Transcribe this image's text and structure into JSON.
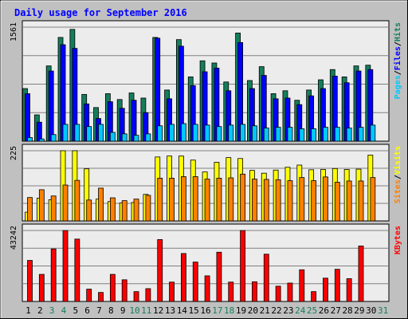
{
  "chart_data": {
    "type": "bar",
    "title": "Daily usage for September 2016",
    "categories": [
      "1",
      "2",
      "3",
      "4",
      "5",
      "6",
      "7",
      "8",
      "9",
      "10",
      "11",
      "12",
      "13",
      "14",
      "15",
      "16",
      "17",
      "18",
      "19",
      "20",
      "21",
      "22",
      "23",
      "24",
      "25",
      "26",
      "27",
      "28",
      "29",
      "30",
      "31"
    ],
    "weekend_days": [
      "3",
      "4",
      "10",
      "11",
      "17",
      "18",
      "24",
      "25",
      "31"
    ],
    "grid": true,
    "colors": {
      "background": "#c0c0c0",
      "plot_background": "#ececec",
      "title": "#0000ff",
      "hits": "#157d5c",
      "files": "#0000ff",
      "pages": "#00c8ff",
      "visits": "#ffff00",
      "sites": "#ff8000",
      "kbytes": "#ff0000",
      "weekday_label": "#000000",
      "weekend_label": "#157d5c"
    },
    "panels": [
      {
        "id": "hits-files-pages",
        "ymax_label": "1561",
        "ymax": 1561,
        "legend": [
          {
            "text": "Pages",
            "color": "#00c8ff"
          },
          {
            "text": "/",
            "color": "#000000"
          },
          {
            "text": "Files",
            "color": "#0000ff"
          },
          {
            "text": "/",
            "color": "#000000"
          },
          {
            "text": "Hits",
            "color": "#157d5c"
          }
        ],
        "series": [
          {
            "name": "Hits",
            "color": "#157d5c",
            "values": [
              720,
              360,
              1030,
              1420,
              1530,
              640,
              460,
              650,
              570,
              660,
              590,
              1420,
              700,
              1390,
              880,
              1100,
              1070,
              810,
              1480,
              830,
              1020,
              650,
              690,
              560,
              700,
              840,
              980,
              880,
              1030,
              1040,
              0
            ]
          },
          {
            "name": "Files",
            "color": "#0000ff",
            "values": [
              650,
              260,
              960,
              1320,
              1270,
              510,
              310,
              540,
              450,
              560,
              390,
              1410,
              580,
              1300,
              760,
              950,
              1000,
              690,
              1350,
              720,
              900,
              580,
              590,
              500,
              620,
              720,
              890,
              800,
              960,
              980,
              0
            ]
          },
          {
            "name": "Pages",
            "color": "#00c8ff",
            "values": [
              50,
              30,
              90,
              230,
              230,
              200,
              230,
              120,
              100,
              80,
              100,
              210,
              230,
              240,
              230,
              220,
              200,
              220,
              230,
              210,
              180,
              190,
              190,
              170,
              170,
              190,
              190,
              180,
              190,
              220,
              0
            ]
          }
        ]
      },
      {
        "id": "visits-sites",
        "ymax_label": "225",
        "ymax": 225,
        "legend": [
          {
            "text": "Sites",
            "color": "#ff8000"
          },
          {
            "text": "/",
            "color": "#000000"
          },
          {
            "text": "Visits",
            "color": "#ffff00"
          }
        ],
        "series": [
          {
            "name": "Visits",
            "color": "#ffff00",
            "values": [
              28,
              73,
              68,
              225,
              225,
              167,
              70,
              62,
              58,
              59,
              85,
              205,
              208,
              208,
              195,
              157,
              188,
              203,
              200,
              162,
              153,
              163,
              172,
              179,
              164,
              165,
              168,
              165,
              166,
              211,
              0
            ]
          },
          {
            "name": "Sites",
            "color": "#ff8000",
            "values": [
              75,
              100,
              80,
              115,
              130,
              67,
              105,
              74,
              65,
              70,
              82,
              137,
              137,
              142,
              142,
              134,
              137,
              138,
              150,
              134,
              133,
              132,
              129,
              139,
              129,
              141,
              124,
              128,
              128,
              139,
              0
            ]
          }
        ]
      },
      {
        "id": "kbytes",
        "ymax_label": "43242",
        "ymax": 43242,
        "legend": [
          {
            "text": "KBytes",
            "color": "#ff0000"
          }
        ],
        "series": [
          {
            "name": "KBytes",
            "color": "#ff0000",
            "values": [
              25000,
              16500,
              32000,
              43200,
              38000,
              7500,
              5500,
              16500,
              13200,
              6000,
              7800,
              37700,
              11800,
              29200,
              24000,
              15600,
              30000,
              11800,
              43200,
              12000,
              28800,
              9300,
              11200,
              19300,
              6000,
              14200,
              19600,
              13900,
              33800,
              0,
              0
            ]
          }
        ]
      }
    ]
  }
}
